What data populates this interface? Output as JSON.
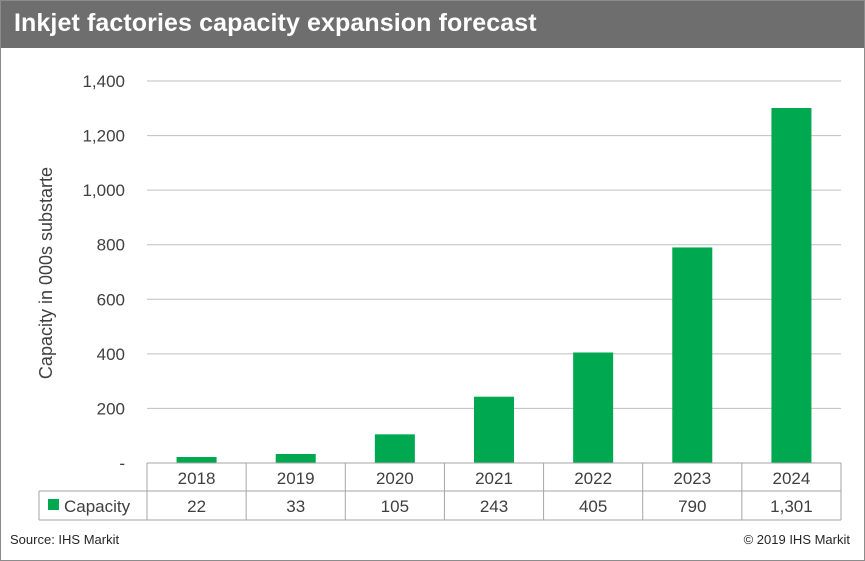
{
  "title": "Inkjet factories capacity expansion forecast",
  "source": "Source: IHS Markit",
  "copyright": "© 2019 IHS Markit",
  "colors": {
    "bar": "#00a84f",
    "header": "#6e6e6e",
    "grid": "#bfbfbf",
    "text": "#404040"
  },
  "chart_data": {
    "type": "bar",
    "categories": [
      "2018",
      "2019",
      "2020",
      "2021",
      "2022",
      "2023",
      "2024"
    ],
    "series": [
      {
        "name": "Capacity",
        "values": [
          22,
          33,
          105,
          243,
          405,
          790,
          1301
        ],
        "labels": [
          "22",
          "33",
          "105",
          "243",
          "405",
          "790",
          "1,301"
        ]
      }
    ],
    "ylabel": "Capacity in 000s substarte",
    "ylim": [
      0,
      1400
    ],
    "yticks": [
      0,
      200,
      400,
      600,
      800,
      1000,
      1200,
      1400
    ],
    "ytick_labels": [
      "-",
      "200",
      "400",
      "600",
      "800",
      "1,000",
      "1,200",
      "1,400"
    ],
    "grid": true,
    "legend": "data-table"
  }
}
